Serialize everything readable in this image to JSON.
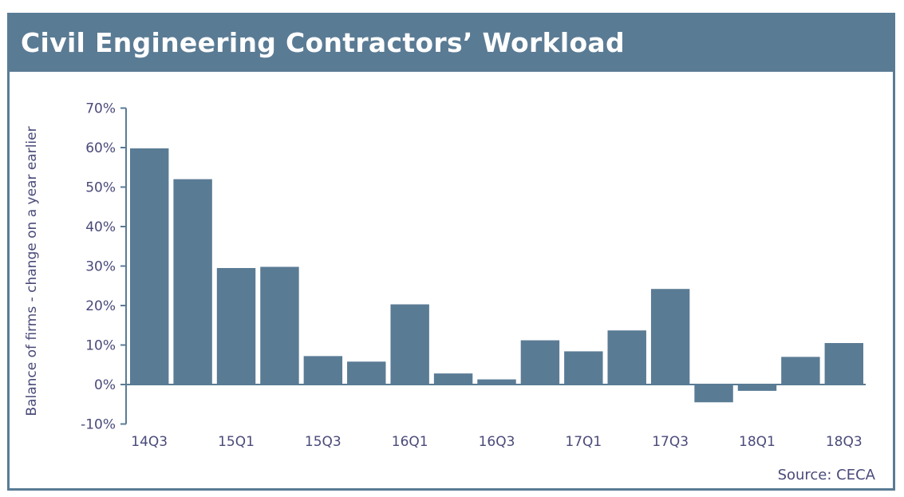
{
  "header": {
    "title": "Civil Engineering Contractors’ Workload"
  },
  "source": "Source: CECA",
  "colors": {
    "bar": "#5a7b94",
    "axis": "#5a7b94",
    "text": "#4a4a7a",
    "title_bg": "#5a7b94"
  },
  "chart_data": {
    "type": "bar",
    "title": "Civil Engineering Contractors’ Workload",
    "xlabel": "",
    "ylabel": "Balance of firms - change on a year earlier",
    "ylim": [
      -10,
      70
    ],
    "yticks": [
      "-10%",
      "0%",
      "10%",
      "20%",
      "30%",
      "40%",
      "50%",
      "60%",
      "70%"
    ],
    "ytick_values": [
      -10,
      0,
      10,
      20,
      30,
      40,
      50,
      60,
      70
    ],
    "categories": [
      "14Q3",
      "14Q4",
      "15Q1",
      "15Q2",
      "15Q3",
      "15Q4",
      "16Q1",
      "16Q2",
      "16Q3",
      "16Q4",
      "17Q1",
      "17Q2",
      "17Q3",
      "17Q4",
      "18Q1",
      "18Q2",
      "18Q3"
    ],
    "xtick_labels": [
      "14Q3",
      "",
      "15Q1",
      "",
      "15Q3",
      "",
      "16Q1",
      "",
      "16Q3",
      "",
      "17Q1",
      "",
      "17Q3",
      "",
      "18Q1",
      "",
      "18Q3"
    ],
    "values": [
      59.8,
      52,
      29.5,
      29.8,
      7.2,
      5.8,
      20.3,
      2.8,
      1.3,
      11.2,
      8.4,
      13.7,
      24.2,
      -4.5,
      -1.6,
      7,
      10.5
    ],
    "grid": false,
    "legend": "none"
  }
}
